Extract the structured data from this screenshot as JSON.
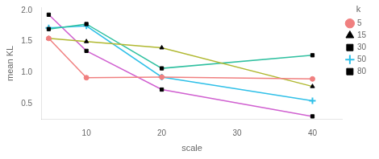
{
  "chart_data": {
    "type": "line",
    "xlabel": "scale",
    "ylabel": "mean KL",
    "legend_title": "k",
    "x": [
      5,
      10,
      20,
      40
    ],
    "series": [
      {
        "name": "5",
        "color": "#F08080",
        "marker": "circle",
        "values": [
          1.55,
          0.92,
          0.93,
          0.9
        ]
      },
      {
        "name": "15",
        "color": "#b0b830",
        "marker": "triangle",
        "values": [
          1.55,
          1.5,
          1.4,
          0.78
        ]
      },
      {
        "name": "30",
        "color": "#30c0a0",
        "marker": "square",
        "values": [
          1.7,
          1.78,
          1.07,
          1.28
        ]
      },
      {
        "name": "50",
        "color": "#30c0e8",
        "marker": "plus",
        "values": [
          1.72,
          1.75,
          0.93,
          0.55
        ]
      },
      {
        "name": "80",
        "color": "#d060d0",
        "marker": "square",
        "values": [
          1.93,
          1.35,
          0.73,
          0.3
        ]
      }
    ],
    "xlim": [
      4,
      44
    ],
    "xticks": [
      10,
      20,
      30,
      40
    ],
    "ylim": [
      0.25,
      2.05
    ],
    "yticks": [
      0.5,
      {
        "value": 1,
        "label": "1.0"
      },
      1.5,
      {
        "value": 2,
        "label": "2.0"
      }
    ],
    "grid": false,
    "legend": "right"
  }
}
